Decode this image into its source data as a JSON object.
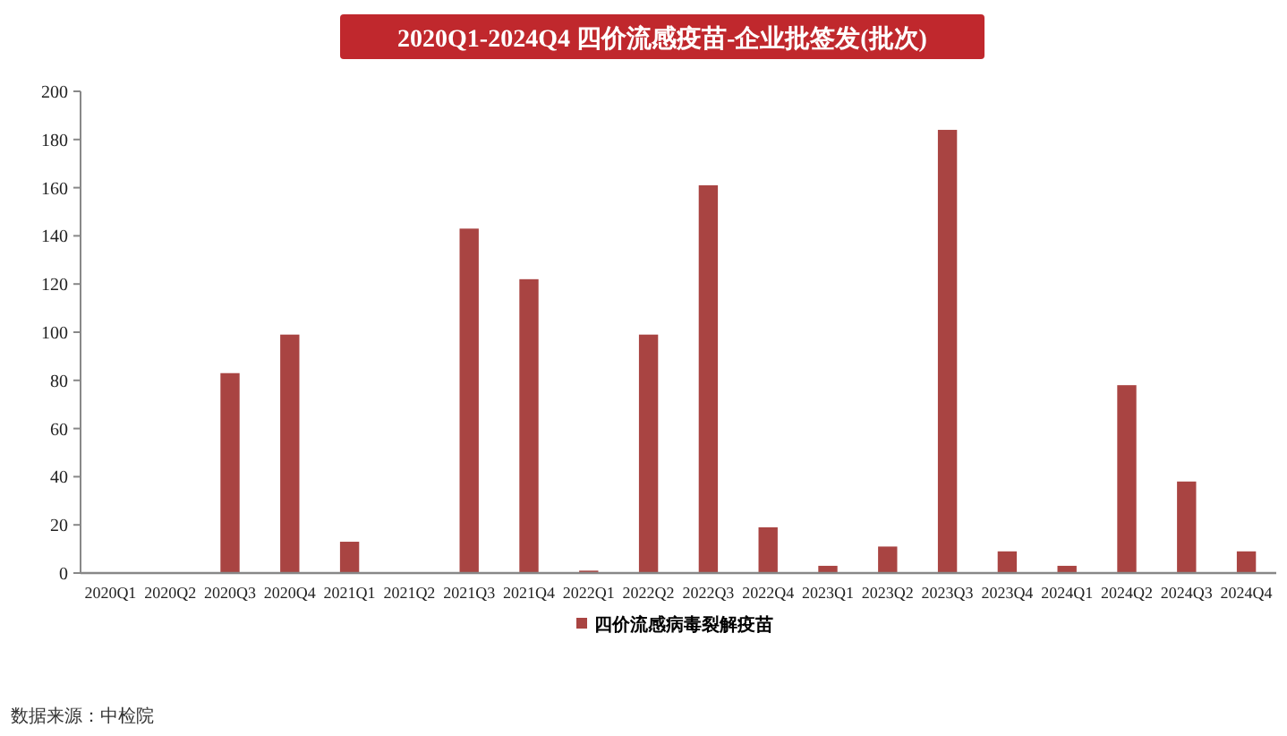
{
  "chart_data": {
    "type": "bar",
    "title": "2020Q1-2024Q4 四价流感疫苗-企业批签发(批次)",
    "categories": [
      "2020Q1",
      "2020Q2",
      "2020Q3",
      "2020Q4",
      "2021Q1",
      "2021Q2",
      "2021Q3",
      "2021Q4",
      "2022Q1",
      "2022Q2",
      "2022Q3",
      "2022Q4",
      "2023Q1",
      "2023Q2",
      "2023Q3",
      "2023Q4",
      "2024Q1",
      "2024Q2",
      "2024Q3",
      "2024Q4"
    ],
    "series": [
      {
        "name": "四价流感病毒裂解疫苗",
        "color": "#a94442",
        "values": [
          0,
          0,
          83,
          99,
          13,
          0,
          143,
          122,
          1,
          99,
          161,
          19,
          3,
          11,
          184,
          9,
          3,
          78,
          38,
          9
        ]
      }
    ],
    "ylim": [
      0,
      200
    ],
    "yticks": [
      0,
      20,
      40,
      60,
      80,
      100,
      120,
      140,
      160,
      180,
      200
    ],
    "grid": false,
    "legend": "bottom",
    "annotations": [
      "数据来源：中检院"
    ]
  }
}
